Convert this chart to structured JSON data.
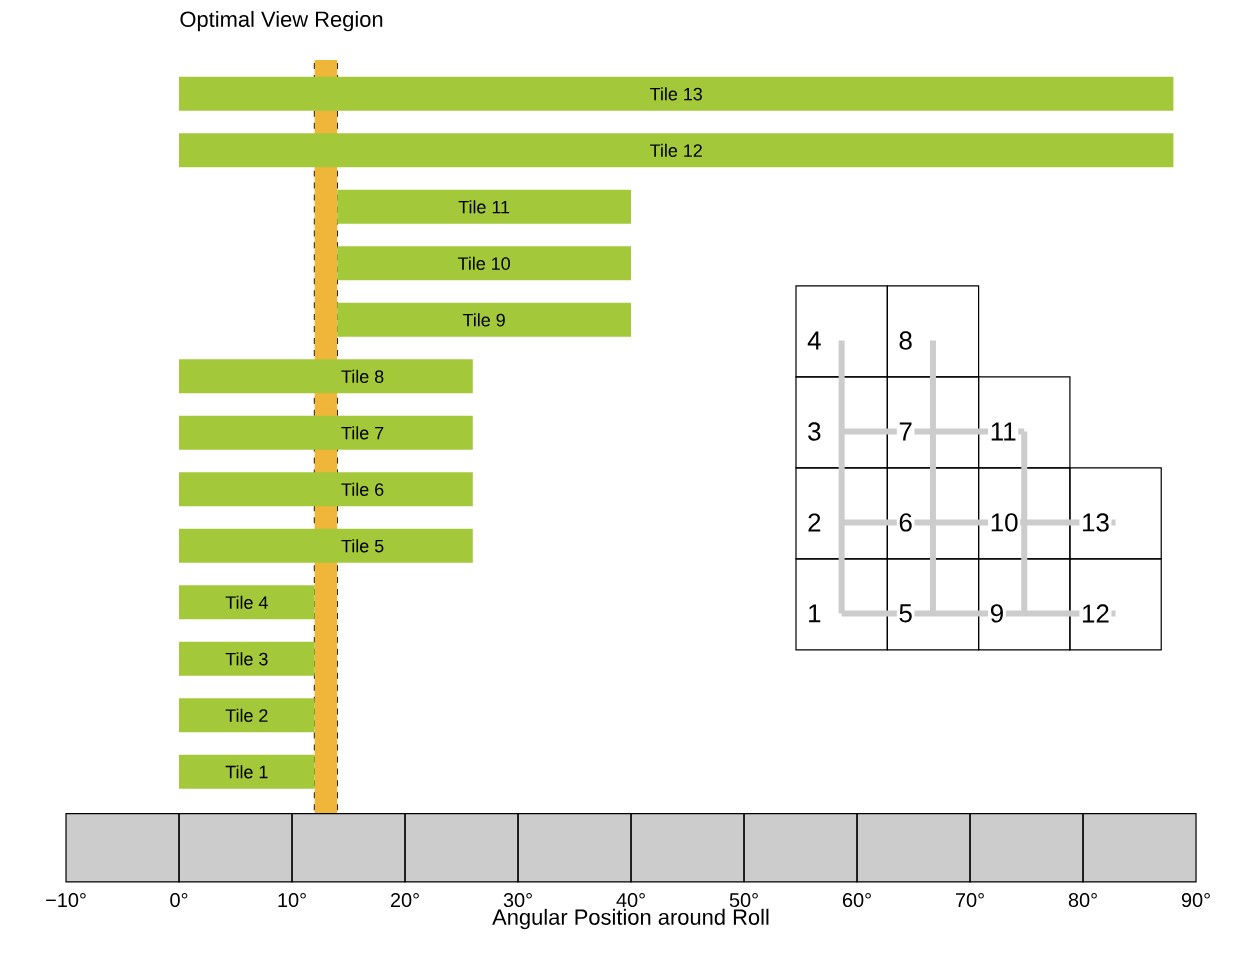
{
  "chart_data": {
    "type": "bar",
    "orientation": "horizontal",
    "xlabel": "Angular Position around Roll",
    "categories": [
      "Tile 13",
      "Tile 12",
      "Tile 11",
      "Tile 10",
      "Tile 9",
      "Tile 8",
      "Tile 7",
      "Tile 6",
      "Tile 5",
      "Tile 4",
      "Tile 3",
      "Tile 2",
      "Tile 1"
    ],
    "base": [
      0,
      0,
      14,
      14,
      14,
      0,
      0,
      0,
      0,
      0,
      0,
      0,
      0
    ],
    "values": [
      88,
      88,
      26,
      26,
      26,
      26,
      26,
      26,
      26,
      12,
      12,
      12,
      12
    ],
    "color": "#a3c93a",
    "xlim": [
      -10,
      90
    ],
    "xticks": [
      {
        "value": -10,
        "label": "−10°"
      },
      {
        "value": 0,
        "label": "0°"
      },
      {
        "value": 10,
        "label": "10°"
      },
      {
        "value": 20,
        "label": "20°"
      },
      {
        "value": 30,
        "label": "30°"
      },
      {
        "value": 40,
        "label": "40°"
      },
      {
        "value": 50,
        "label": "50°"
      },
      {
        "value": 60,
        "label": "60°"
      },
      {
        "value": 70,
        "label": "70°"
      },
      {
        "value": 80,
        "label": "80°"
      },
      {
        "value": 90,
        "label": "90°"
      }
    ],
    "tick_labels": "x",
    "bands": [
      {
        "axis": "x",
        "from": 12,
        "to": 14,
        "label": "Optimal View Region",
        "color": "#f0b63a"
      }
    ],
    "ref_lines": [
      {
        "axis": "x",
        "value": 12,
        "color": "#000000",
        "line_style": "dashed"
      },
      {
        "axis": "x",
        "value": 14,
        "color": "#000000",
        "line_style": "dashed"
      }
    ],
    "annotations": [
      "1",
      "2",
      "3",
      "4",
      "5",
      "6",
      "7",
      "8",
      "9",
      "10",
      "11",
      "12",
      "13"
    ]
  }
}
